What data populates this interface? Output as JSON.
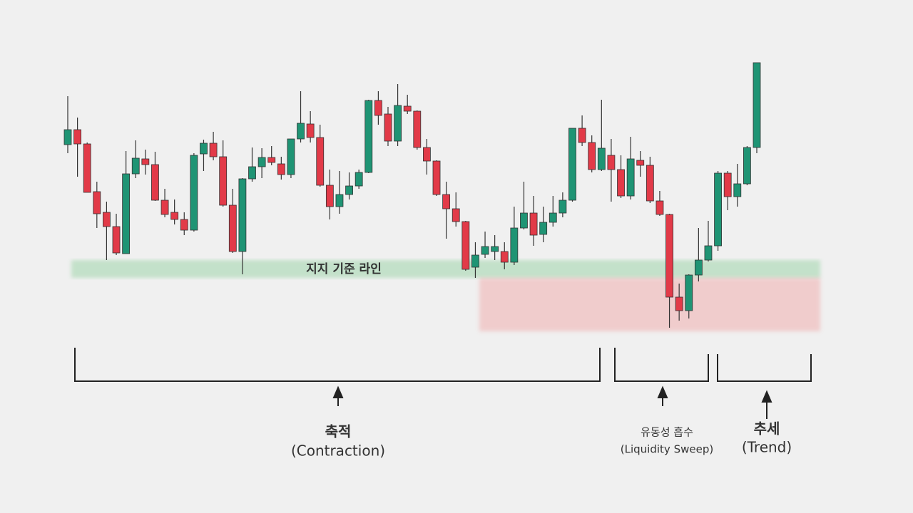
{
  "chart_data": {
    "type": "candlestick",
    "up_color": "#1f9474",
    "down_color": "#e23a48",
    "open": [
      517,
      538,
      518,
      451,
      422,
      402,
      364,
      476,
      497,
      489,
      439,
      422,
      412,
      397,
      504,
      519,
      500,
      432,
      367,
      469,
      486,
      499,
      490,
      475,
      525,
      546,
      527,
      460,
      430,
      447,
      459,
      478,
      579,
      560,
      522,
      571,
      564,
      513,
      494,
      447,
      427,
      409,
      345,
      363,
      367,
      367,
      352,
      400,
      421,
      391,
      408,
      421,
      439,
      540,
      520,
      482,
      502,
      482,
      445,
      495,
      488,
      438,
      419,
      303,
      284,
      334,
      355,
      375,
      477,
      444,
      462,
      513
    ],
    "high": [
      585,
      555,
      520,
      465,
      437,
      420,
      508,
      523,
      510,
      507,
      455,
      440,
      422,
      505,
      524,
      535,
      523,
      455,
      470,
      513,
      512,
      515,
      500,
      525,
      592,
      564,
      545,
      482,
      480,
      478,
      482,
      580,
      592,
      570,
      602,
      587,
      565,
      525,
      495,
      465,
      450,
      410,
      380,
      395,
      390,
      380,
      430,
      465,
      445,
      430,
      445,
      450,
      540,
      558,
      530,
      580,
      525,
      502,
      528,
      508,
      500,
      452,
      420,
      322,
      335,
      400,
      410,
      480,
      480,
      490,
      515,
      632
    ],
    "low": [
      505,
      472,
      450,
      400,
      355,
      362,
      364,
      470,
      475,
      438,
      415,
      405,
      390,
      395,
      480,
      495,
      430,
      365,
      335,
      465,
      470,
      488,
      468,
      470,
      520,
      520,
      458,
      412,
      420,
      440,
      455,
      477,
      545,
      515,
      515,
      560,
      510,
      475,
      445,
      385,
      402,
      340,
      330,
      358,
      355,
      342,
      348,
      398,
      375,
      380,
      402,
      415,
      437,
      515,
      478,
      480,
      437,
      442,
      440,
      472,
      435,
      417,
      260,
      270,
      273,
      325,
      353,
      368,
      425,
      430,
      460,
      505
    ],
    "close": [
      538,
      518,
      450,
      420,
      402,
      365,
      476,
      498,
      489,
      439,
      419,
      412,
      397,
      502,
      519,
      500,
      432,
      367,
      469,
      486,
      499,
      492,
      475,
      525,
      547,
      527,
      460,
      430,
      447,
      459,
      478,
      579,
      558,
      522,
      572,
      564,
      513,
      494,
      447,
      427,
      409,
      342,
      362,
      374,
      374,
      352,
      400,
      421,
      390,
      408,
      421,
      439,
      540,
      520,
      482,
      512,
      482,
      445,
      497,
      488,
      438,
      419,
      303,
      284,
      334,
      355,
      375,
      477,
      444,
      462,
      513,
      632
    ],
    "support_label": "지지 기준 라인",
    "annotations": [
      {
        "title": "축적",
        "subtitle": "(Contraction)"
      },
      {
        "title": "유동성 흡수",
        "subtitle": "(Liquidity Sweep)"
      },
      {
        "title": "추세",
        "subtitle": "(Trend)"
      }
    ]
  }
}
